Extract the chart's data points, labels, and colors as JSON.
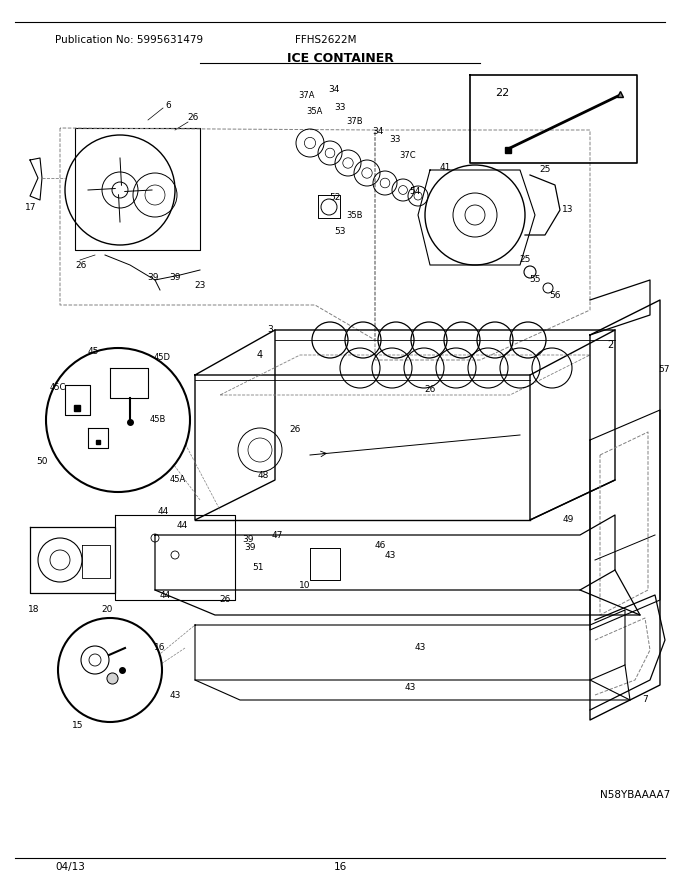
{
  "title": "ICE CONTAINER",
  "pub_no": "Publication No: 5995631479",
  "model": "FFHS2622M",
  "date": "04/13",
  "page": "16",
  "diagram_id": "N58YBAAAA7",
  "bg_color": "#ffffff",
  "border_color": "#000000",
  "text_color": "#000000",
  "fig_width": 6.8,
  "fig_height": 8.8,
  "dpi": 100,
  "title_fontsize": 9,
  "header_fontsize": 7.5,
  "footer_fontsize": 7.5
}
